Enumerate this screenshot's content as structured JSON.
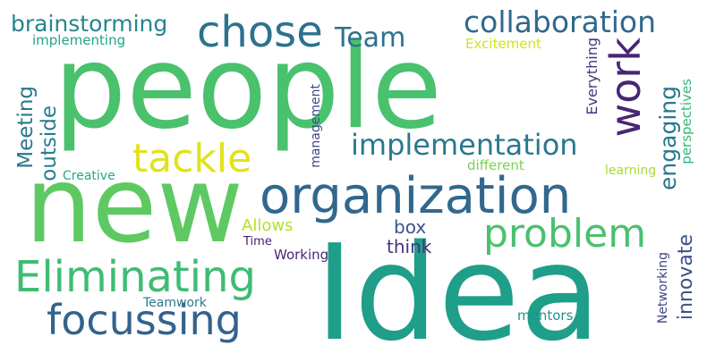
{
  "cloud": {
    "words": [
      {
        "text": "people",
        "color": "#4ac16d"
      },
      {
        "text": "Idea",
        "color": "#1f9e89"
      },
      {
        "text": "new",
        "color": "#5ec962"
      },
      {
        "text": "organization",
        "color": "#31688e"
      },
      {
        "text": "Eliminating",
        "color": "#3fbc73"
      },
      {
        "text": "focussing",
        "color": "#33638d"
      },
      {
        "text": "problem",
        "color": "#4ac16d"
      },
      {
        "text": "chose",
        "color": "#2c728e"
      },
      {
        "text": "tackle",
        "color": "#e1e21b"
      },
      {
        "text": "work",
        "color": "#482576"
      },
      {
        "text": "collaboration",
        "color": "#31688e"
      },
      {
        "text": "implementation",
        "color": "#2a788e"
      },
      {
        "text": "Team",
        "color": "#2c728e"
      },
      {
        "text": "brainstorming",
        "color": "#25858e"
      },
      {
        "text": "implementing",
        "color": "#20a486"
      },
      {
        "text": "Excitement",
        "color": "#d2e21b"
      },
      {
        "text": "engaging",
        "color": "#2a778e"
      },
      {
        "text": "innovate",
        "color": "#3b528b"
      },
      {
        "text": "Meeting",
        "color": "#2a788e"
      },
      {
        "text": "outside",
        "color": "#287d8e"
      },
      {
        "text": "Creative",
        "color": "#22a884"
      },
      {
        "text": "management",
        "color": "#3e4989"
      },
      {
        "text": "Everything",
        "color": "#46327e"
      },
      {
        "text": "perspectives",
        "color": "#35b779"
      },
      {
        "text": "different",
        "color": "#7ad151"
      },
      {
        "text": "learning",
        "color": "#a5db36"
      },
      {
        "text": "Allows",
        "color": "#b5de2b"
      },
      {
        "text": "box",
        "color": "#3b528b"
      },
      {
        "text": "think",
        "color": "#46337e"
      },
      {
        "text": "Time",
        "color": "#481c6e"
      },
      {
        "text": "Working",
        "color": "#482878"
      },
      {
        "text": "Teamwork",
        "color": "#2a788e"
      },
      {
        "text": "Networking",
        "color": "#404688"
      },
      {
        "text": "mentors",
        "color": "#21918c"
      }
    ]
  }
}
